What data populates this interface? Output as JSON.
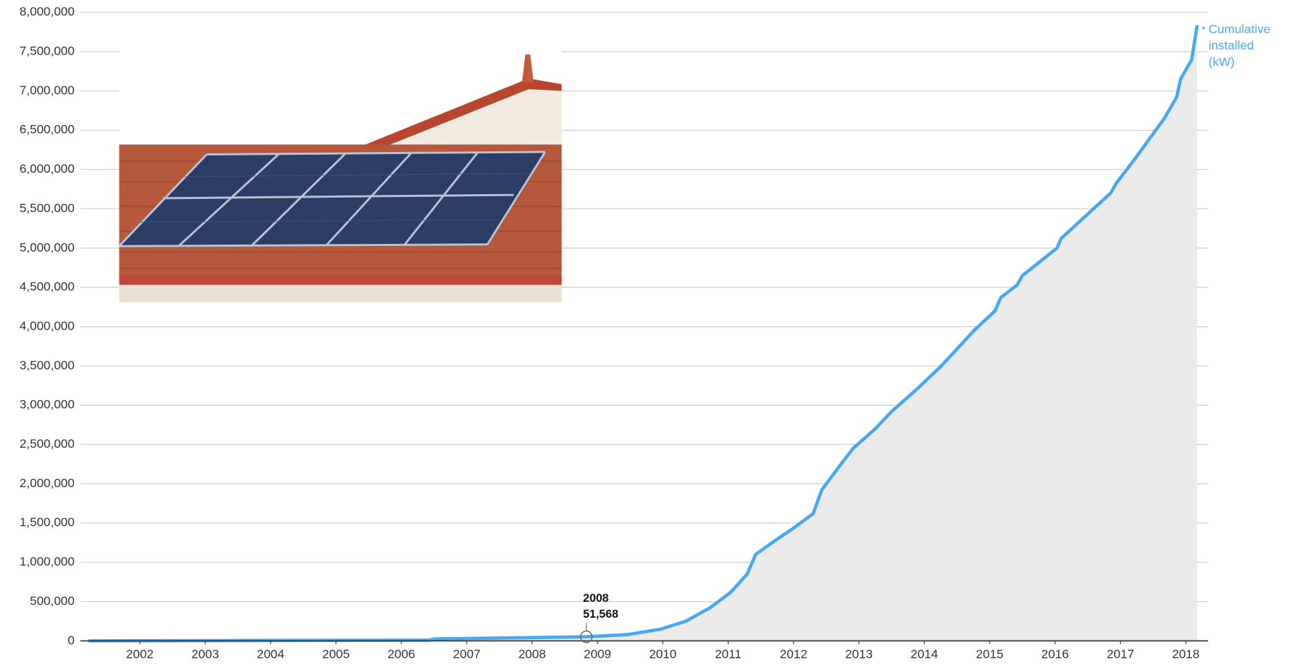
{
  "chart_data": {
    "type": "area",
    "x": [
      2001.23,
      2006.43,
      2006.5,
      2008.83,
      2009.46,
      2009.97,
      2010.35,
      2010.72,
      2011.04,
      2011.29,
      2011.42,
      2011.67,
      2011.99,
      2012.3,
      2012.43,
      2012.68,
      2012.91,
      2013.25,
      2013.5,
      2013.88,
      2014.26,
      2014.76,
      2015.08,
      2015.17,
      2015.42,
      2015.5,
      2016.03,
      2016.09,
      2016.85,
      2016.94,
      2017.19,
      2017.67,
      2017.86,
      2017.92,
      2018.09,
      2018.17
    ],
    "series": [
      {
        "name": "Cumulative installed (kW)",
        "color": "#4aa8f0",
        "area_color": "#ebebeb",
        "values": [
          0,
          10000,
          25000,
          51568,
          80000,
          150000,
          250000,
          420000,
          620000,
          850000,
          1100000,
          1250000,
          1430000,
          1620000,
          1920000,
          2200000,
          2450000,
          2700000,
          2920000,
          3200000,
          3500000,
          3950000,
          4200000,
          4370000,
          4530000,
          4650000,
          5000000,
          5120000,
          5700000,
          5830000,
          6100000,
          6650000,
          6920000,
          7150000,
          7400000,
          7820000
        ],
        "point_labels": [
          null,
          null,
          null,
          "2008",
          null,
          null,
          null,
          null,
          null,
          null,
          null,
          null,
          null,
          null,
          null,
          null,
          null,
          null,
          null,
          null,
          null,
          null,
          null,
          null,
          null,
          null,
          null,
          null,
          null,
          null,
          null,
          null,
          null,
          null,
          null,
          null
        ],
        "value_labels": [
          null,
          null,
          null,
          "51,568",
          null,
          null,
          null,
          null,
          null,
          null,
          null,
          null,
          null,
          null,
          null,
          null,
          null,
          null,
          null,
          null,
          null,
          null,
          null,
          null,
          null,
          null,
          null,
          null,
          null,
          null,
          null,
          null,
          null,
          null,
          null,
          null
        ]
      }
    ],
    "xlim": [
      2001.09,
      2018.34
    ],
    "xticks": [
      2002,
      2003,
      2004,
      2005,
      2006,
      2007,
      2008,
      2009,
      2010,
      2011,
      2012,
      2013,
      2014,
      2015,
      2016,
      2017,
      2018
    ],
    "ylim": [
      0,
      8000000
    ],
    "yticks": [
      0,
      {
        "value": 500000,
        "label": "500,000"
      },
      {
        "value": 1000000,
        "label": "1,000,000"
      },
      {
        "value": 1500000,
        "label": "1,500,000"
      },
      {
        "value": 2000000,
        "label": "2,000,000"
      },
      {
        "value": 2500000,
        "label": "2,500,000"
      },
      {
        "value": 3000000,
        "label": "3,000,000"
      },
      {
        "value": 3500000,
        "label": "3,500,000"
      },
      {
        "value": 4000000,
        "label": "4,000,000"
      },
      {
        "value": 4500000,
        "label": "4,500,000"
      },
      {
        "value": 5000000,
        "label": "5,000,000"
      },
      {
        "value": 5500000,
        "label": "5,500,000"
      },
      {
        "value": 6000000,
        "label": "6,000,000"
      },
      {
        "value": 6500000,
        "label": "6,500,000"
      },
      {
        "value": 7000000,
        "label": "7,000,000"
      },
      {
        "value": 7500000,
        "label": "7,500,000"
      },
      {
        "value": 8000000,
        "label": "8,000,000"
      }
    ],
    "grid": true,
    "legend": "right"
  }
}
